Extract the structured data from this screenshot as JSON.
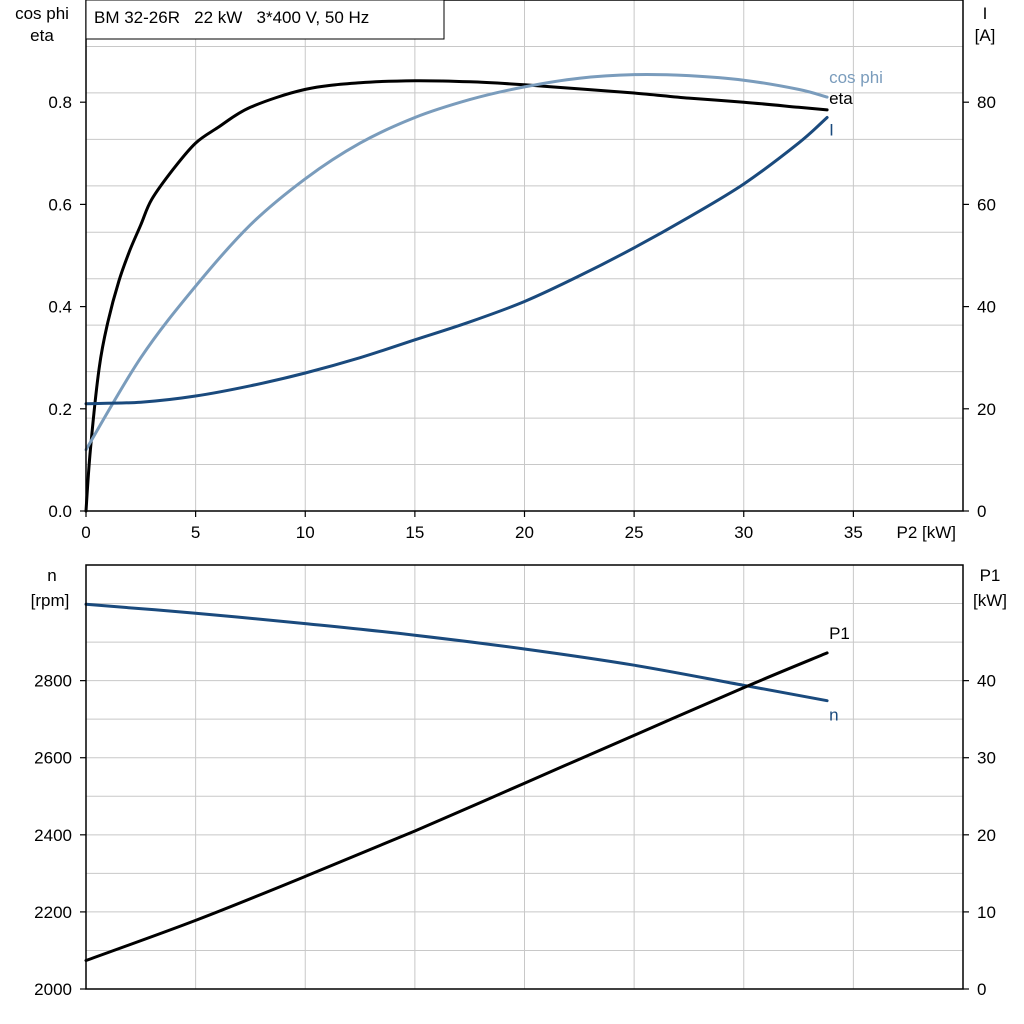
{
  "chart_data": [
    {
      "type": "line",
      "title": "BM 32-26R   22 kW   3*400 V, 50 Hz",
      "xlabel": "P2 [kW]",
      "xlim": [
        0,
        40
      ],
      "xticks": [
        0,
        5,
        10,
        15,
        20,
        25,
        30,
        35
      ],
      "ylabel_left_line1": "cos phi",
      "ylabel_left_line2": "eta",
      "ylim_left": [
        0,
        1.0
      ],
      "yticks_left": [
        "0.0",
        "0.2",
        "0.4",
        "0.6",
        "0.8"
      ],
      "yticks_left_values": [
        0,
        0.2,
        0.4,
        0.6,
        0.8
      ],
      "ylabel_right_line1": "I",
      "ylabel_right_line2": "[A]",
      "ylim_right": [
        0,
        100
      ],
      "yticks_right": [
        "0",
        "20",
        "40",
        "60",
        "80"
      ],
      "yticks_right_values": [
        0,
        20,
        40,
        60,
        80
      ],
      "grid": true,
      "series": [
        {
          "name": "eta",
          "axis": "left",
          "color": "#000000",
          "x": [
            0,
            0.2,
            0.6,
            1.0,
            1.5,
            2.0,
            2.5,
            3.0,
            4.0,
            5.0,
            6.0,
            7.5,
            10,
            12.5,
            15,
            17.5,
            20,
            22.5,
            25,
            27.5,
            30,
            32.5,
            33.8
          ],
          "y": [
            0.0,
            0.12,
            0.28,
            0.37,
            0.45,
            0.51,
            0.56,
            0.61,
            0.67,
            0.72,
            0.75,
            0.79,
            0.825,
            0.838,
            0.842,
            0.84,
            0.834,
            0.826,
            0.818,
            0.808,
            0.8,
            0.79,
            0.785
          ]
        },
        {
          "name": "cos phi",
          "axis": "left",
          "color": "#7a9cbc",
          "x": [
            0,
            2.5,
            5,
            7.5,
            10,
            12.5,
            15,
            17.5,
            20,
            22.5,
            25,
            27.5,
            30,
            32.5,
            33.8
          ],
          "y": [
            0.12,
            0.3,
            0.44,
            0.56,
            0.65,
            0.72,
            0.77,
            0.805,
            0.83,
            0.847,
            0.854,
            0.852,
            0.843,
            0.825,
            0.81
          ]
        },
        {
          "name": "I",
          "axis": "right",
          "color": "#1a4a7d",
          "x": [
            0,
            2.5,
            5,
            7.5,
            10,
            12.5,
            15,
            17.5,
            20,
            22.5,
            25,
            27.5,
            30,
            32.5,
            33.8
          ],
          "y": [
            21,
            21.3,
            22.5,
            24.5,
            27,
            30,
            33.5,
            37,
            41,
            46,
            51.5,
            57.5,
            64,
            72,
            77
          ]
        }
      ]
    },
    {
      "type": "line",
      "xlim": [
        0,
        40
      ],
      "ylabel_left_line1": "n",
      "ylabel_left_line2": "[rpm]",
      "ylim_left": [
        2000,
        3100
      ],
      "yticks_left": [
        "2000",
        "2200",
        "2400",
        "2600",
        "2800"
      ],
      "yticks_left_values": [
        2000,
        2200,
        2400,
        2600,
        2800
      ],
      "ylabel_right_line1": "P1",
      "ylabel_right_line2": "[kW]",
      "ylim_right": [
        0,
        55
      ],
      "yticks_right": [
        "0",
        "10",
        "20",
        "30",
        "40"
      ],
      "yticks_right_values": [
        0,
        10,
        20,
        30,
        40
      ],
      "grid": true,
      "series": [
        {
          "name": "n",
          "axis": "left",
          "color": "#1a4a7d",
          "x": [
            0,
            5,
            10,
            15,
            20,
            25,
            30,
            33.8
          ],
          "y": [
            2998,
            2975,
            2948,
            2918,
            2882,
            2840,
            2788,
            2748
          ]
        },
        {
          "name": "P1",
          "axis": "right",
          "color": "#000000",
          "x": [
            0,
            5,
            10,
            15,
            20,
            25,
            30,
            33.8
          ],
          "y": [
            3.7,
            8.9,
            14.6,
            20.5,
            26.7,
            32.9,
            39.1,
            43.6
          ]
        }
      ]
    }
  ]
}
